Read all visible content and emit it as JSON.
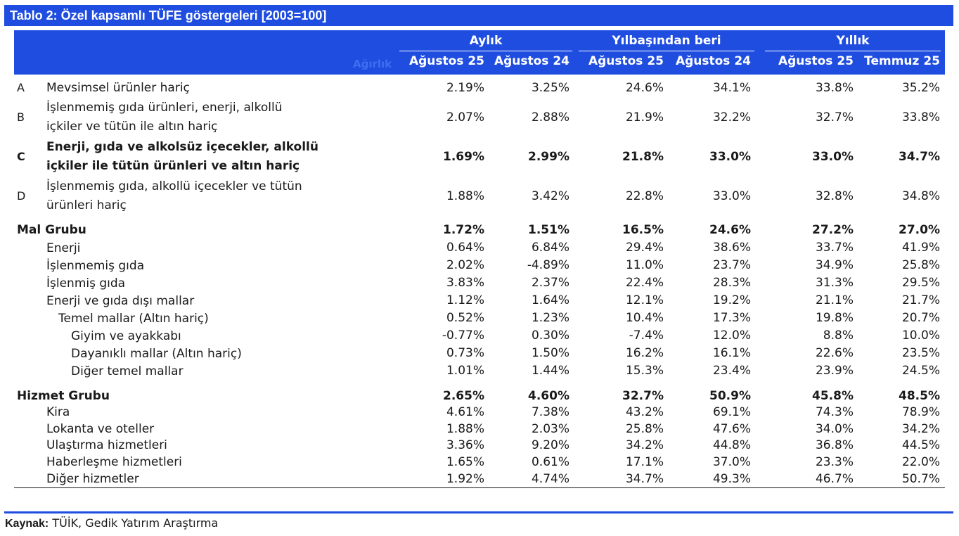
{
  "title": "Tablo 2: Özel kapsamlı TÜFE göstergeleri [2003=100]",
  "header": {
    "weight_label": "Ağırlık",
    "groups": [
      "Aylık",
      "Yılbaşından beri",
      "Yıllık"
    ],
    "columns": [
      "Ağustos 25",
      "Ağustos 24",
      "Ağustos 25",
      "Ağustos 24",
      "Ağustos 25",
      "Temmuz 25"
    ]
  },
  "rows": [
    {
      "code": "A",
      "label": "Mevsimsel ürünler hariç",
      "values": [
        "2.19%",
        "3.25%",
        "24.6%",
        "34.1%",
        "33.8%",
        "35.2%"
      ]
    },
    {
      "code": "B",
      "label": "İşlenmemiş gıda ürünleri, enerji, alkollü",
      "label2": "içkiler ve tütün ile altın hariç",
      "values": [
        "2.07%",
        "2.88%",
        "21.9%",
        "32.2%",
        "32.7%",
        "33.8%"
      ]
    },
    {
      "code": "C",
      "label": "Enerji, gıda ve alkolsüz içecekler, alkollü",
      "label2": "içkiler ile tütün ürünleri ve altın hariç",
      "values": [
        "1.69%",
        "2.99%",
        "21.8%",
        "33.0%",
        "33.0%",
        "34.7%"
      ]
    },
    {
      "code": "D",
      "label": "İşlenmemiş gıda, alkollü içecekler ve tütün",
      "label2": "ürünleri hariç",
      "values": [
        "1.88%",
        "3.42%",
        "22.8%",
        "33.0%",
        "32.8%",
        "34.8%"
      ]
    },
    {
      "label": "Mal Grubu",
      "values": [
        "1.72%",
        "1.51%",
        "16.5%",
        "24.6%",
        "27.2%",
        "27.0%"
      ]
    },
    {
      "label": "Enerji",
      "values": [
        "0.64%",
        "6.84%",
        "29.4%",
        "38.6%",
        "33.7%",
        "41.9%"
      ]
    },
    {
      "label": "İşlenmemiş gıda",
      "values": [
        "2.02%",
        "-4.89%",
        "11.0%",
        "23.7%",
        "34.9%",
        "25.8%"
      ]
    },
    {
      "label": "İşlenmiş gıda",
      "values": [
        "3.83%",
        "2.37%",
        "22.4%",
        "28.3%",
        "31.3%",
        "29.5%"
      ]
    },
    {
      "label": "Enerji ve gıda dışı mallar",
      "values": [
        "1.12%",
        "1.64%",
        "12.1%",
        "19.2%",
        "21.1%",
        "21.7%"
      ]
    },
    {
      "label": "Temel mallar (Altın hariç)",
      "values": [
        "0.52%",
        "1.23%",
        "10.4%",
        "17.3%",
        "19.8%",
        "20.7%"
      ]
    },
    {
      "label": "Giyim ve ayakkabı",
      "values": [
        "-0.77%",
        "0.30%",
        "-7.4%",
        "12.0%",
        "8.8%",
        "10.0%"
      ]
    },
    {
      "label": "Dayanıklı mallar (Altın hariç)",
      "values": [
        "0.73%",
        "1.50%",
        "16.2%",
        "16.1%",
        "22.6%",
        "23.5%"
      ]
    },
    {
      "label": "Diğer temel mallar",
      "values": [
        "1.01%",
        "1.44%",
        "15.3%",
        "23.4%",
        "23.9%",
        "24.5%"
      ]
    },
    {
      "label": "Hizmet Grubu",
      "values": [
        "2.65%",
        "4.60%",
        "32.7%",
        "50.9%",
        "45.8%",
        "48.5%"
      ]
    },
    {
      "label": "Kira",
      "values": [
        "4.61%",
        "7.38%",
        "43.2%",
        "69.1%",
        "74.3%",
        "78.9%"
      ]
    },
    {
      "label": "Lokanta ve oteller",
      "values": [
        "1.88%",
        "2.03%",
        "25.8%",
        "47.6%",
        "34.0%",
        "34.2%"
      ]
    },
    {
      "label": "Ulaştırma hizmetleri",
      "values": [
        "3.36%",
        "9.20%",
        "34.2%",
        "44.8%",
        "36.8%",
        "44.5%"
      ]
    },
    {
      "label": "Haberleşme hizmetleri",
      "values": [
        "1.65%",
        "0.61%",
        "17.1%",
        "37.0%",
        "23.3%",
        "22.0%"
      ]
    },
    {
      "label": "Diğer hizmetler",
      "values": [
        "1.92%",
        "4.74%",
        "34.7%",
        "49.3%",
        "46.7%",
        "50.7%"
      ]
    }
  ],
  "source": {
    "label": "Kaynak:",
    "text": " TÜİK, Gedik Yatırım Araştırma"
  }
}
